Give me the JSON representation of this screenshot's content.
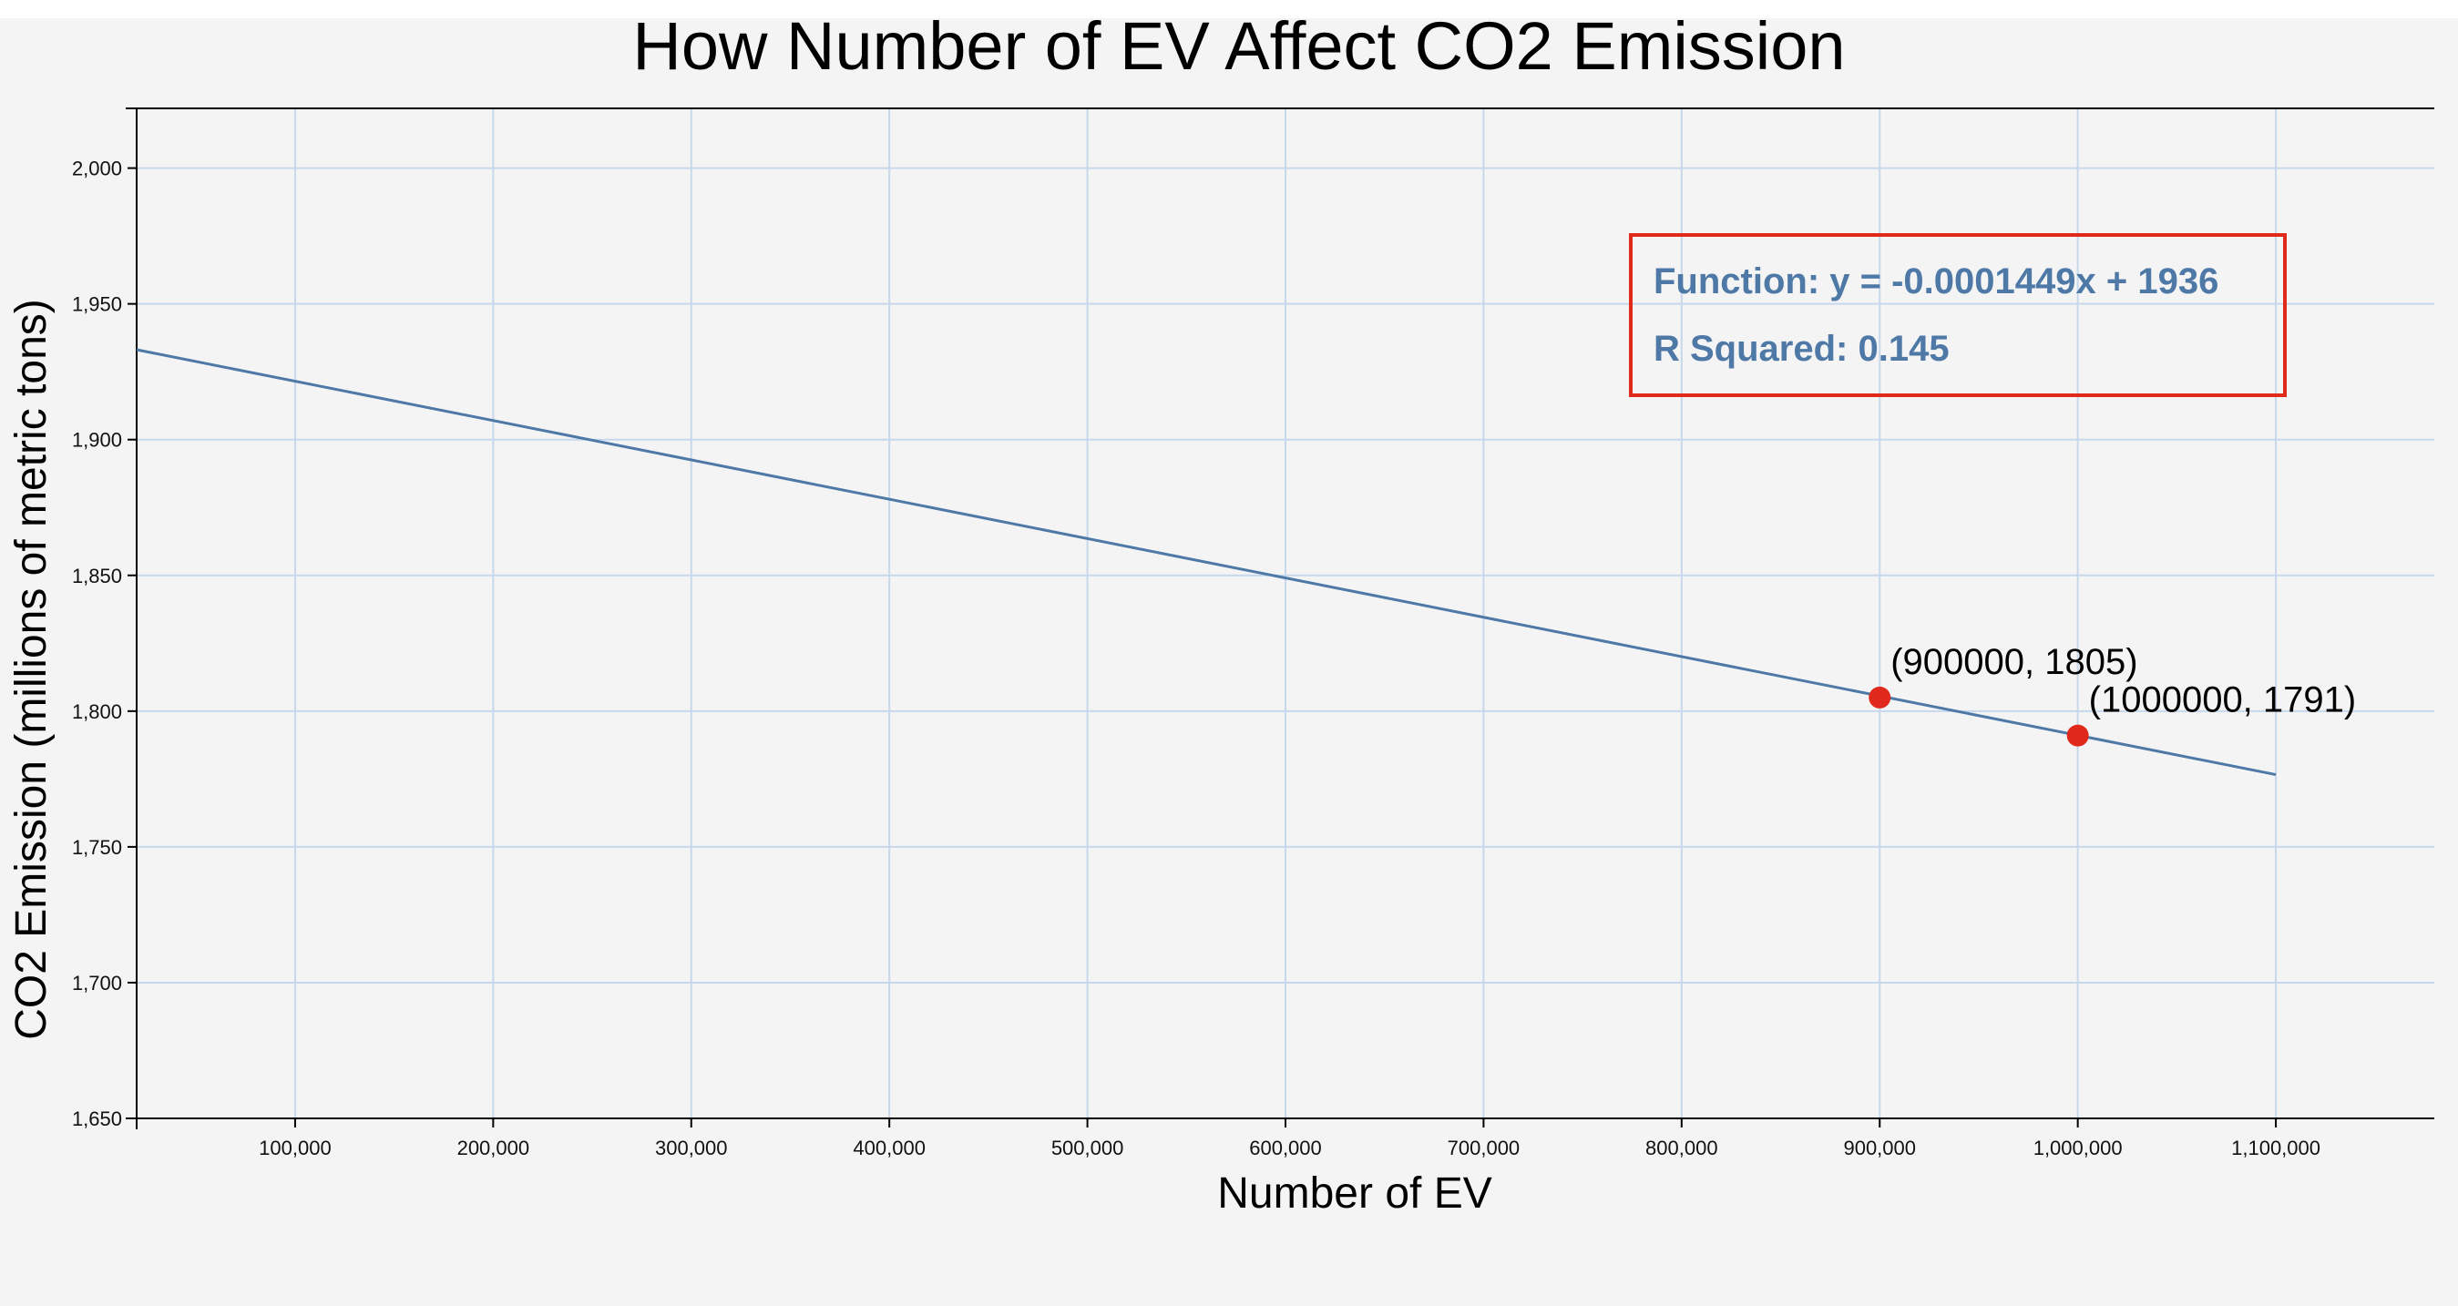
{
  "chart_data": {
    "type": "scatter",
    "title": "How Number of EV Affect CO2 Emission",
    "xlabel": "Number of EV",
    "ylabel": "CO2 Emission (millions of metric tons)",
    "xlim": [
      20000,
      1180000
    ],
    "ylim": [
      1650,
      2022
    ],
    "x_ticks": [
      100000,
      200000,
      300000,
      400000,
      500000,
      600000,
      700000,
      800000,
      900000,
      1000000,
      1100000
    ],
    "x_tick_labels": [
      "100,000",
      "200,000",
      "300,000",
      "400,000",
      "500,000",
      "600,000",
      "700,000",
      "800,000",
      "900,000",
      "1,000,000",
      "1,100,000"
    ],
    "y_ticks": [
      1650,
      1700,
      1750,
      1800,
      1850,
      1900,
      1950,
      2000
    ],
    "y_tick_labels": [
      "1,650",
      "1,700",
      "1,750",
      "1,800",
      "1,850",
      "1,900",
      "1,950",
      "2,000"
    ],
    "grid": true,
    "points": [],
    "regression": {
      "slope": -0.0001449,
      "intercept": 1936,
      "x_range": [
        20000,
        1100000
      ]
    },
    "highlighted_points": [
      {
        "x": 900000,
        "y": 1805,
        "label": "(900000, 1805)"
      },
      {
        "x": 1000000,
        "y": 1791,
        "label": "(1000000, 1791)"
      }
    ],
    "info_box": {
      "function_text": "Function: y = -0.0001449x + 1936",
      "r_squared_text": "R Squared: 0.145",
      "placement": "top-right"
    },
    "colors": {
      "background": "#f4f4f4",
      "grid": "#c7d8ec",
      "axis": "#000000",
      "points": "#000000",
      "regression": "#4e79a7",
      "highlight": "#e0291b",
      "info_border": "#e0291b",
      "info_text": "#4e79a7"
    }
  }
}
